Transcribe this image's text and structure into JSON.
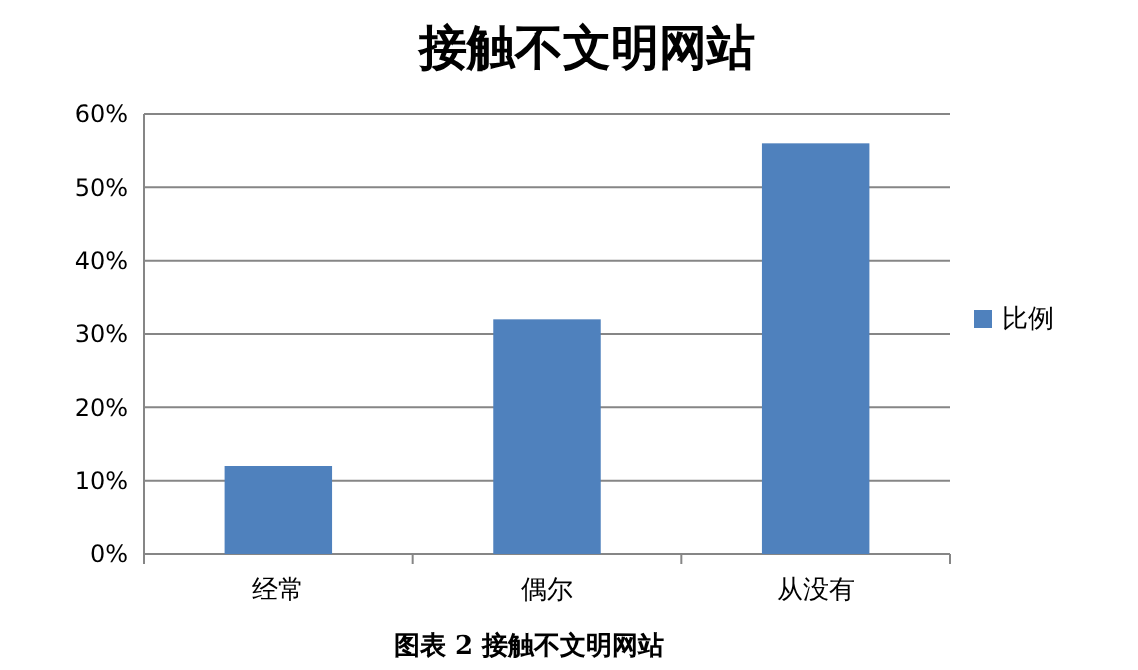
{
  "chart_data": {
    "type": "bar",
    "title": "接触不文明网站",
    "categories": [
      "经常",
      "偶尔",
      "从没有"
    ],
    "series": [
      {
        "name": "比例",
        "color": "#4f81bd",
        "values": [
          12,
          32,
          56
        ]
      }
    ],
    "ylim": [
      0,
      60
    ],
    "yticks": [
      {
        "value": 0,
        "label": "0%"
      },
      {
        "value": 10,
        "label": "10%"
      },
      {
        "value": 20,
        "label": "20%"
      },
      {
        "value": 30,
        "label": "30%"
      },
      {
        "value": 40,
        "label": "40%"
      },
      {
        "value": 50,
        "label": "50%"
      },
      {
        "value": 60,
        "label": "60%"
      }
    ],
    "grid": "y",
    "legend": "right",
    "annotations": [
      "图表 2  接触不文明网站"
    ]
  }
}
